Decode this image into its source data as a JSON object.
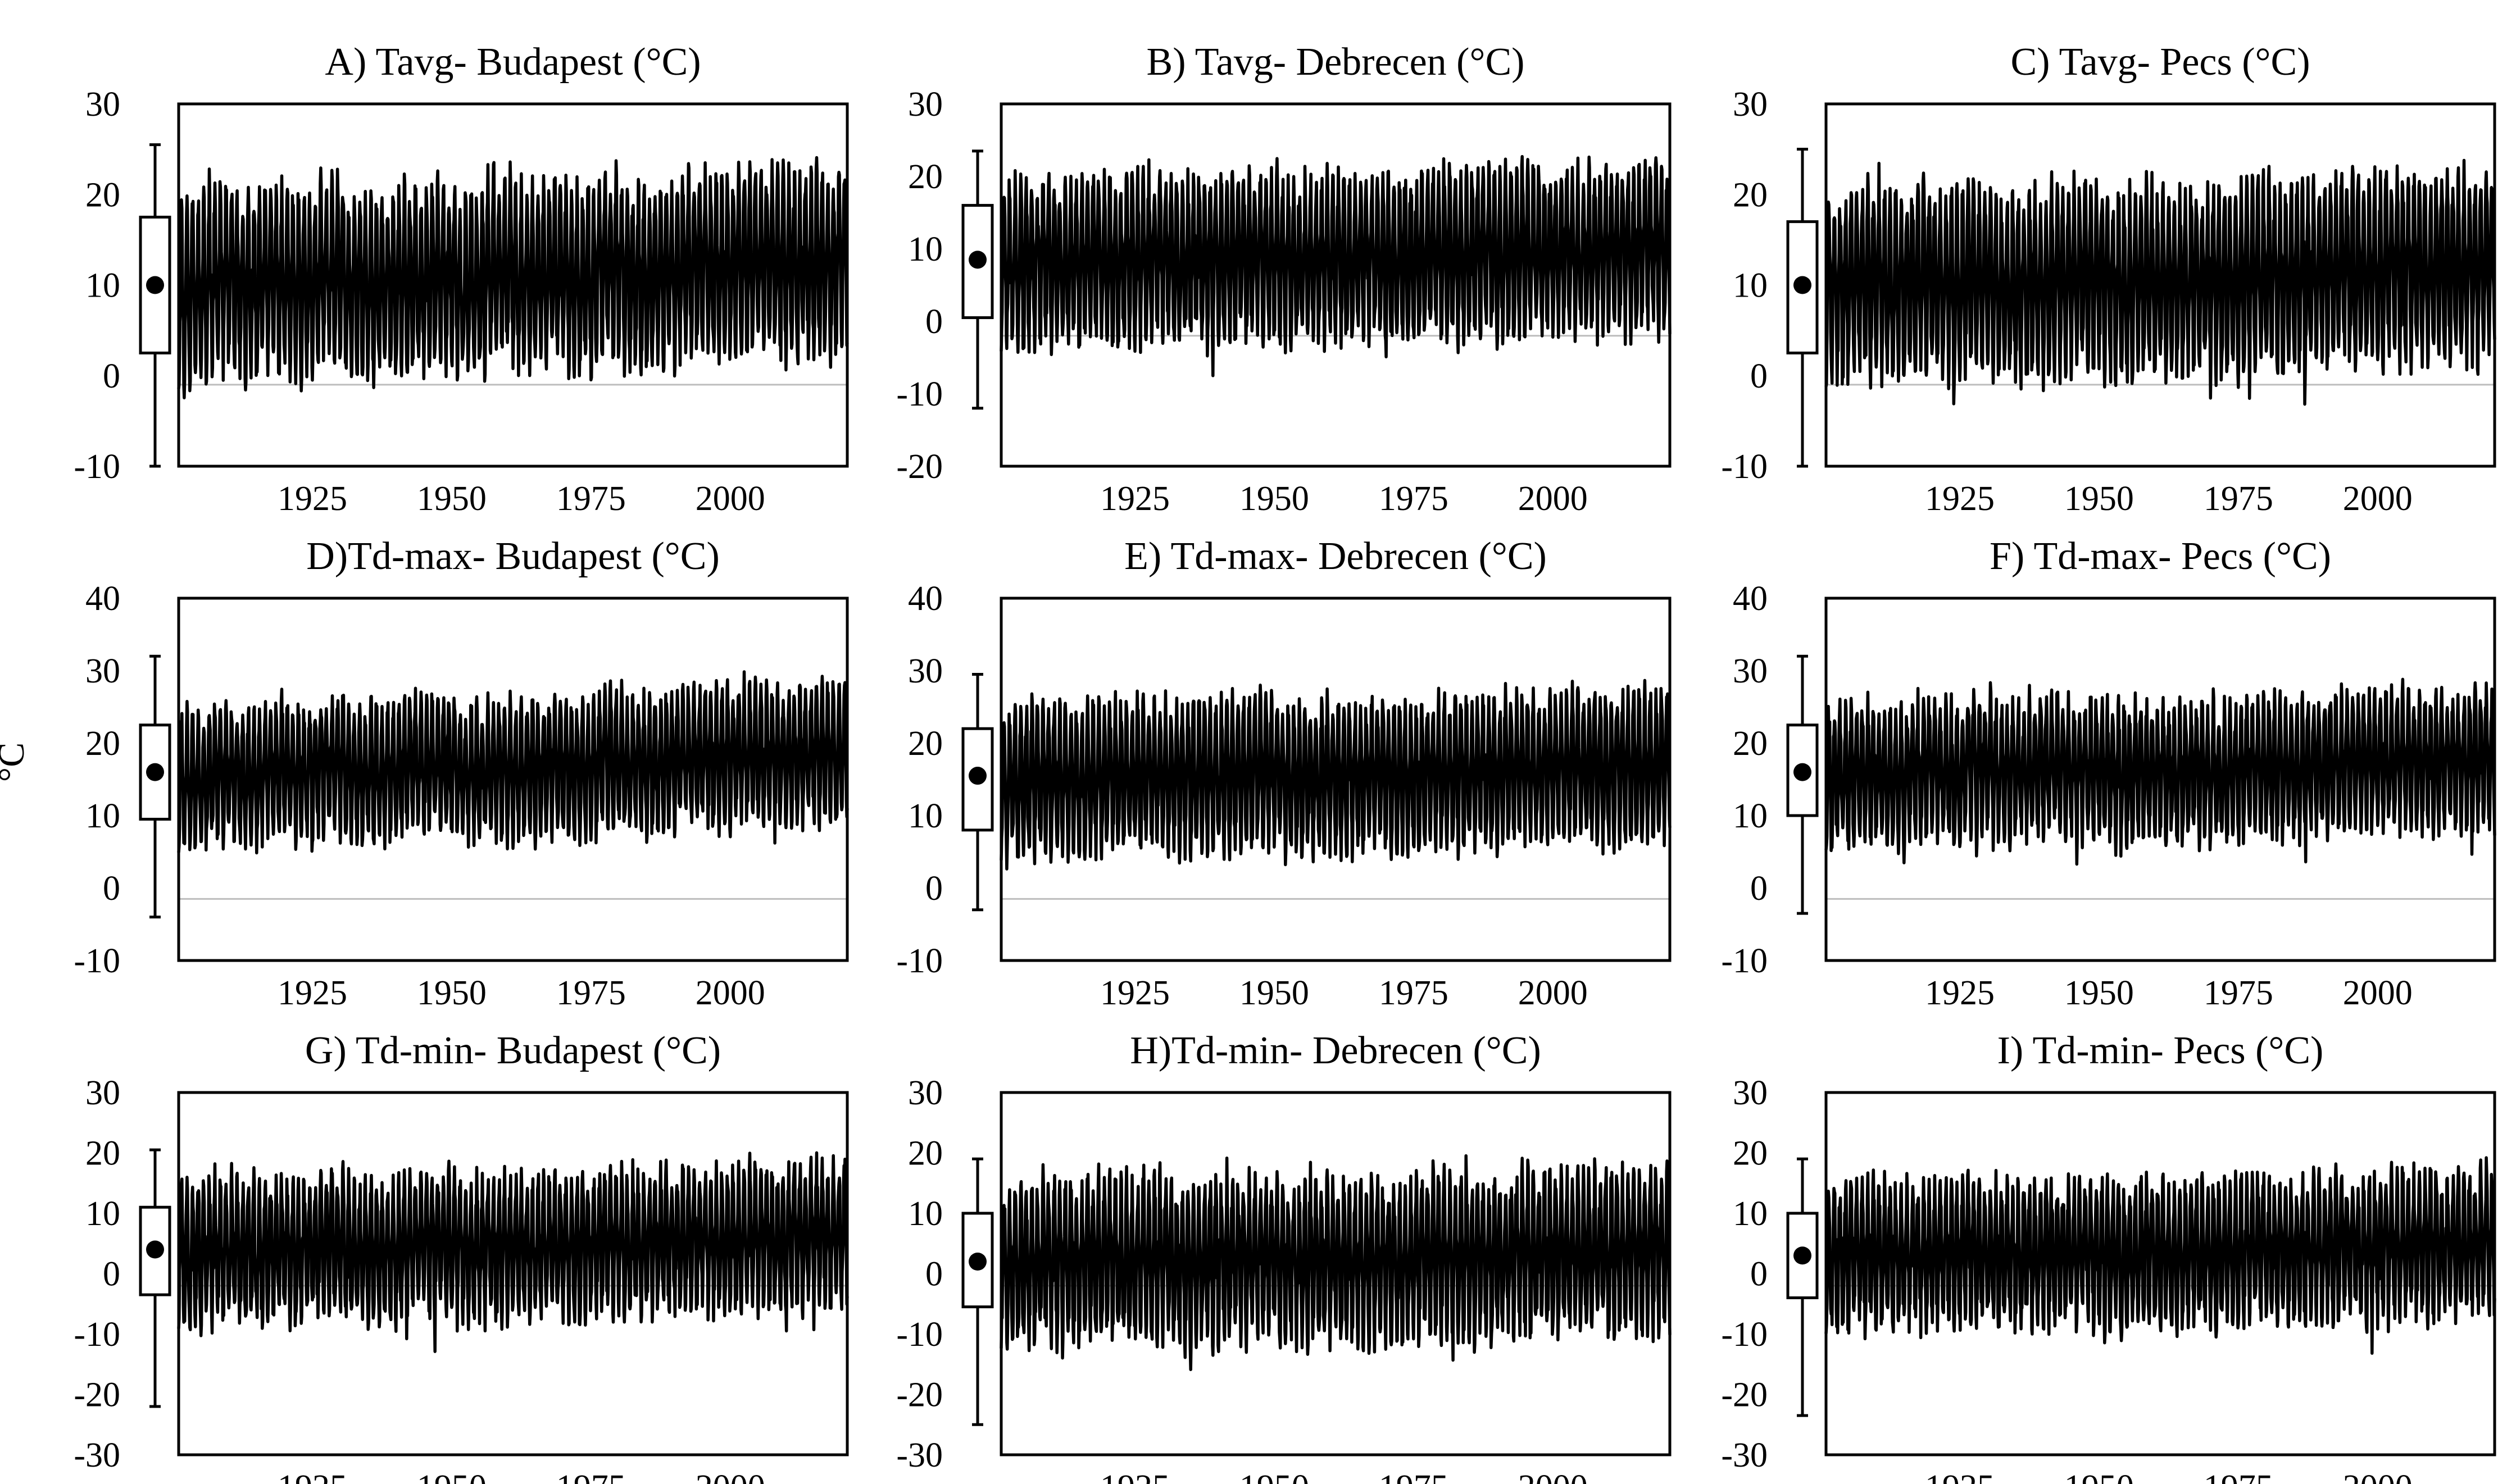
{
  "figure": {
    "y_axis_label": "°C"
  },
  "chart_data": [
    {
      "type": "line",
      "title": "A) Tavg- Budapest (°C)",
      "ylim": [
        -10,
        30
      ],
      "yticks": [
        -10,
        0,
        10,
        20,
        30
      ],
      "xlim": [
        1901,
        2021
      ],
      "xticks": [
        1925,
        1950,
        1975,
        2000
      ],
      "series": [
        {
          "values": [
            9.2,
            11.1,
            9.6,
            10.4,
            10.1,
            11.5,
            9.8,
            10.0,
            10.6,
            11.2,
            9.9,
            11.8,
            10.5,
            11.4,
            10.3,
            12.0,
            10.8,
            11.3,
            12.6,
            11.9,
            12.8,
            12.1,
            12.3,
            12.5
          ]
        }
      ],
      "series_display": {
        "amplitude": 9.4,
        "noise": 2.4,
        "seed": 11
      },
      "boxplot": {
        "min": -10,
        "q1": 2.5,
        "median": 10,
        "q3": 17.5,
        "max": 25.5
      },
      "reference_line": -1
    },
    {
      "type": "line",
      "title": "B) Tavg- Debrecen (°C)",
      "ylim": [
        -20,
        30
      ],
      "yticks": [
        -20,
        -10,
        0,
        10,
        20,
        30
      ],
      "xlim": [
        1901,
        2021
      ],
      "xticks": [
        1925,
        1950,
        1975,
        2000
      ],
      "series": [
        {
          "values": [
            7.9,
            8.8,
            8.2,
            8.6,
            8.4,
            9.1,
            8.3,
            8.5,
            8.9,
            9.2,
            8.1,
            8.7,
            8.6,
            9.0,
            8.4,
            9.5,
            9.0,
            9.3,
            9.8,
            9.6,
            10.1,
            9.9,
            10.2,
            10.4
          ]
        }
      ],
      "series_display": {
        "amplitude": 10.6,
        "noise": 2.8,
        "seed": 23
      },
      "boxplot": {
        "min": -12,
        "q1": 0.5,
        "median": 8.5,
        "q3": 16,
        "max": 23.5
      },
      "reference_line": -2
    },
    {
      "type": "line",
      "title": "C) Tavg- Pecs (°C)",
      "ylim": [
        -10,
        30
      ],
      "yticks": [
        -10,
        0,
        10,
        20,
        30
      ],
      "xlim": [
        1901,
        2021
      ],
      "xticks": [
        1925,
        1950,
        1975,
        2000
      ],
      "series": [
        {
          "values": [
            9.6,
            10.4,
            10.0,
            10.8,
            10.2,
            11.4,
            9.9,
            10.3,
            10.9,
            11.0,
            9.8,
            10.6,
            10.2,
            10.7,
            10.1,
            11.3,
            10.9,
            11.1,
            11.8,
            11.5,
            12.0,
            11.7,
            11.9,
            12.1
          ]
        }
      ],
      "series_display": {
        "amplitude": 9.6,
        "noise": 2.4,
        "seed": 37
      },
      "boxplot": {
        "min": -10,
        "q1": 2.5,
        "median": 10,
        "q3": 17,
        "max": 25
      },
      "reference_line": -1
    },
    {
      "type": "line",
      "title": "D)Td-max- Budapest (°C)",
      "ylim": [
        -10,
        40
      ],
      "yticks": [
        -10,
        0,
        10,
        20,
        30,
        40
      ],
      "xlim": [
        1901,
        2021
      ],
      "xticks": [
        1925,
        1950,
        1975,
        2000
      ],
      "series": [
        {
          "values": [
            14.8,
            16.0,
            15.2,
            16.5,
            16.1,
            17.2,
            15.6,
            15.9,
            16.8,
            17.5,
            15.7,
            16.4,
            16.2,
            16.9,
            16.0,
            17.8,
            16.9,
            17.6,
            18.3,
            17.9,
            18.6,
            18.2,
            18.4,
            18.7
          ]
        }
      ],
      "series_display": {
        "amplitude": 8.8,
        "noise": 2.2,
        "seed": 41
      },
      "boxplot": {
        "min": -4,
        "q1": 9.5,
        "median": 16,
        "q3": 22.5,
        "max": 32
      },
      "reference_line": -1.5
    },
    {
      "type": "line",
      "title": "E) Td-max- Debrecen (°C)",
      "ylim": [
        -10,
        40
      ],
      "yticks": [
        -10,
        0,
        10,
        20,
        30,
        40
      ],
      "xlim": [
        1901,
        2021
      ],
      "xticks": [
        1925,
        1950,
        1975,
        2000
      ],
      "series": [
        {
          "values": [
            14.6,
            15.3,
            14.9,
            15.6,
            15.2,
            16.0,
            15.1,
            15.3,
            15.7,
            16.1,
            14.9,
            15.5,
            15.2,
            15.8,
            15.1,
            16.3,
            15.8,
            16.1,
            16.7,
            16.4,
            16.9,
            16.6,
            16.8,
            17.0
          ]
        }
      ],
      "series_display": {
        "amplitude": 9.6,
        "noise": 2.4,
        "seed": 53
      },
      "boxplot": {
        "min": -3,
        "q1": 8,
        "median": 15.5,
        "q3": 22,
        "max": 29.5
      },
      "reference_line": -1.5
    },
    {
      "type": "line",
      "title": "F) Td-max- Pecs (°C)",
      "ylim": [
        -10,
        40
      ],
      "yticks": [
        -10,
        0,
        10,
        20,
        30,
        40
      ],
      "xlim": [
        1901,
        2021
      ],
      "xticks": [
        1925,
        1950,
        1975,
        2000
      ],
      "series": [
        {
          "values": [
            15.2,
            16.0,
            15.6,
            16.4,
            15.9,
            17.6,
            16.3,
            16.8,
            17.1,
            16.6,
            15.7,
            16.2,
            15.8,
            16.3,
            15.6,
            16.9,
            16.4,
            16.8,
            17.4,
            17.1,
            17.7,
            17.3,
            17.5,
            17.8
          ]
        }
      ],
      "series_display": {
        "amplitude": 8.8,
        "noise": 2.4,
        "seed": 67
      },
      "boxplot": {
        "min": -3.5,
        "q1": 10,
        "median": 16,
        "q3": 22.5,
        "max": 32
      },
      "reference_line": -1.5
    },
    {
      "type": "line",
      "title": "G) Td-min- Budapest (°C)",
      "ylim": [
        -30,
        30
      ],
      "yticks": [
        -30,
        -20,
        -10,
        0,
        10,
        20,
        30
      ],
      "xlim": [
        1901,
        2021
      ],
      "xticks": [
        1925,
        1950,
        1975,
        2000
      ],
      "series": [
        {
          "values": [
            3.2,
            4.5,
            3.6,
            4.1,
            3.8,
            5.2,
            3.9,
            4.0,
            4.6,
            5.0,
            3.7,
            4.3,
            4.1,
            4.8,
            4.0,
            5.6,
            4.9,
            5.3,
            6.1,
            5.7,
            6.4,
            6.0,
            6.2,
            6.6
          ]
        }
      ],
      "series_display": {
        "amplitude": 10.8,
        "noise": 3.2,
        "seed": 71
      },
      "boxplot": {
        "min": -22,
        "q1": -3.5,
        "median": 4,
        "q3": 11,
        "max": 20.5
      },
      "reference_line": -2
    },
    {
      "type": "line",
      "title": "H)Td-min- Debrecen (°C)",
      "ylim": [
        -30,
        30
      ],
      "yticks": [
        -30,
        -20,
        -10,
        0,
        10,
        20,
        30
      ],
      "xlim": [
        1901,
        2021
      ],
      "xticks": [
        1925,
        1950,
        1975,
        2000
      ],
      "series": [
        {
          "values": [
            1.5,
            2.3,
            1.8,
            2.4,
            2.0,
            2.9,
            1.9,
            2.1,
            2.6,
            2.8,
            1.7,
            2.2,
            2.0,
            2.5,
            1.9,
            3.1,
            2.6,
            2.9,
            3.5,
            3.2,
            3.8,
            3.5,
            3.7,
            3.9
          ]
        }
      ],
      "series_display": {
        "amplitude": 12.2,
        "noise": 3.6,
        "seed": 83
      },
      "boxplot": {
        "min": -25,
        "q1": -5.5,
        "median": 2,
        "q3": 10,
        "max": 19
      },
      "reference_line": -2
    },
    {
      "type": "line",
      "title": "I) Td-min- Pecs (°C)",
      "ylim": [
        -30,
        30
      ],
      "yticks": [
        -30,
        -20,
        -10,
        0,
        10,
        20,
        30
      ],
      "xlim": [
        1901,
        2021
      ],
      "xticks": [
        1925,
        1950,
        1975,
        2000
      ],
      "series": [
        {
          "values": [
            2.6,
            3.4,
            2.9,
            3.5,
            3.1,
            4.0,
            3.0,
            3.2,
            3.7,
            3.9,
            2.8,
            3.3,
            3.1,
            3.6,
            3.0,
            4.2,
            3.7,
            4.0,
            4.6,
            4.3,
            4.9,
            4.6,
            4.8,
            5.0
          ]
        }
      ],
      "series_display": {
        "amplitude": 11.0,
        "noise": 3.4,
        "seed": 97
      },
      "boxplot": {
        "min": -23.5,
        "q1": -4,
        "median": 3,
        "q3": 10,
        "max": 19
      },
      "reference_line": -2
    }
  ]
}
